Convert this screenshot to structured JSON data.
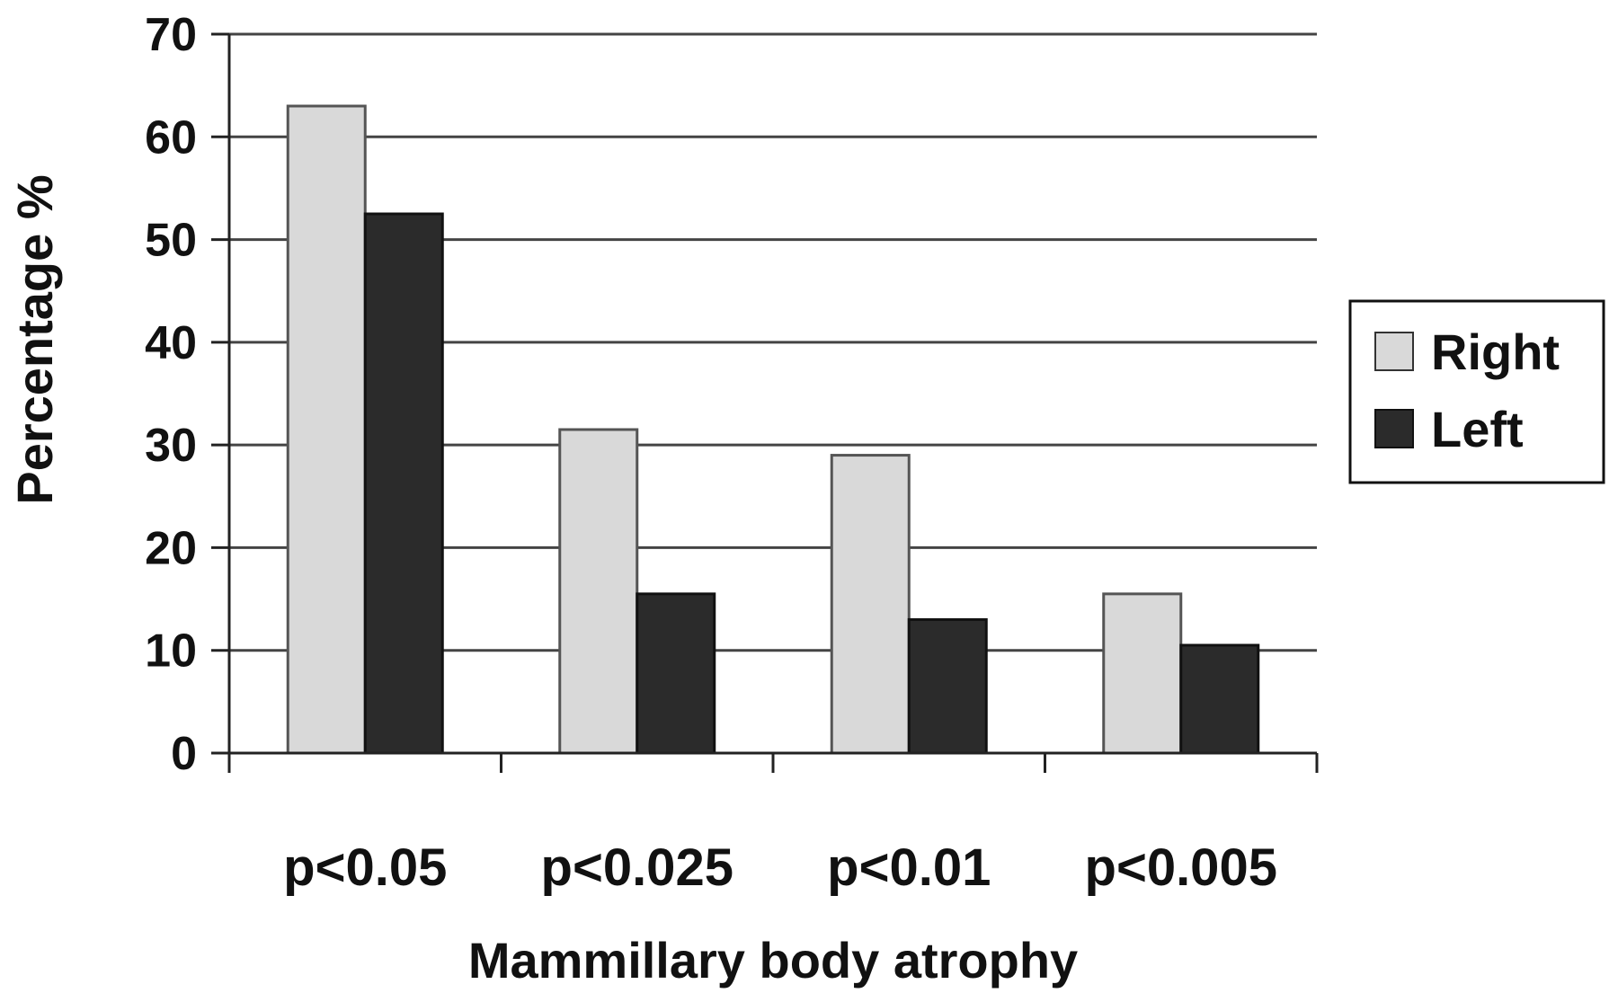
{
  "chart_data": {
    "type": "bar",
    "categories": [
      "p<0.05",
      "p<0.025",
      "p<0.01",
      "p<0.005"
    ],
    "series": [
      {
        "name": "Right",
        "values": [
          63,
          31.5,
          29,
          15.5
        ]
      },
      {
        "name": "Left",
        "values": [
          52.5,
          15.5,
          13,
          10.5
        ]
      }
    ],
    "title": "",
    "xlabel": "Mammillary body atrophy",
    "ylabel": "Percentage %",
    "ylim": [
      0,
      70
    ],
    "yticks": [
      0,
      10,
      20,
      30,
      40,
      50,
      60,
      70
    ],
    "grid": true,
    "legend": "right"
  },
  "colors": {
    "Right": "#d9d9d9",
    "Left": "#2b2b2b",
    "grid": "#444444",
    "axis": "#222222"
  }
}
